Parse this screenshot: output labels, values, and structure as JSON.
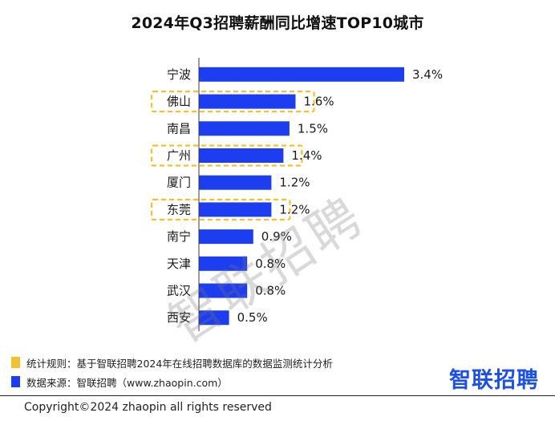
{
  "chart_data": {
    "type": "bar",
    "orientation": "horizontal",
    "title": "2024年Q3招聘薪酬同比增速TOP10城市",
    "categories": [
      "宁波",
      "佛山",
      "南昌",
      "广州",
      "厦门",
      "东莞",
      "南宁",
      "天津",
      "武汉",
      "西安"
    ],
    "values": [
      3.4,
      1.6,
      1.5,
      1.4,
      1.2,
      1.2,
      0.9,
      0.8,
      0.8,
      0.5
    ],
    "value_labels": [
      "3.4%",
      "1.6%",
      "1.5%",
      "1.4%",
      "1.2%",
      "1.2%",
      "0.9%",
      "0.8%",
      "0.8%",
      "0.5%"
    ],
    "highlighted": [
      "佛山",
      "广州",
      "东莞"
    ],
    "xlim": [
      0,
      3.4
    ],
    "xlabel": "",
    "ylabel": "",
    "legend": "none",
    "grid": false
  },
  "colors": {
    "bar": "#1d3ef0",
    "highlight": "#f2c12e",
    "axis": "#3a3a3a",
    "brand": "#1e50e6"
  },
  "notes": [
    {
      "marker_color": "#f2c12e",
      "text": "统计规则：基于智联招聘2024年在线招聘数据库的数据监测统计分析"
    },
    {
      "marker_color": "#1d3ef0",
      "text": "数据来源：智联招聘（www.zhaopin.com）"
    }
  ],
  "watermark": "智联招聘",
  "brand": "智联招聘",
  "copyright": "Copyright©2024 zhaopin all rights reserved"
}
